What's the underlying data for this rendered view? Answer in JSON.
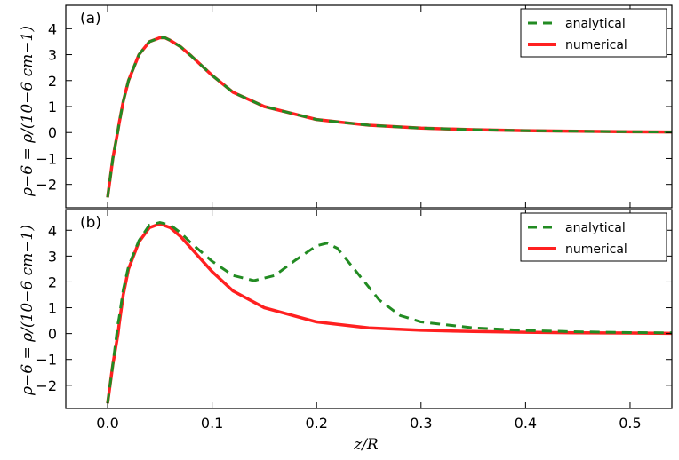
{
  "colors": {
    "analytical": "#228b22",
    "numerical": "#ff2020"
  },
  "xlabel": "z/R",
  "ylabel": "ρ−6 = ρ/(10−6 cm−1)",
  "chart_data": [
    {
      "type": "line",
      "panel_label": "(a)",
      "xlim": [
        -0.04,
        0.54
      ],
      "ylim": [
        -2.9,
        4.9
      ],
      "xticks": [
        0.0,
        0.1,
        0.2,
        0.3,
        0.4,
        0.5
      ],
      "xtick_labels": [
        "0.0",
        "0.1",
        "0.2",
        "0.3",
        "0.4",
        "0.5"
      ],
      "yticks": [
        -2,
        -1,
        0,
        1,
        2,
        3,
        4
      ],
      "ytick_labels": [
        "−2",
        "−1",
        "0",
        "1",
        "2",
        "3",
        "4"
      ],
      "show_xtick_labels": false,
      "legend_position": "top-right",
      "series": [
        {
          "name": "analytical",
          "style": "dashed",
          "x": [
            0.0,
            0.005,
            0.01,
            0.011,
            0.015,
            0.02,
            0.03,
            0.04,
            0.05,
            0.055,
            0.06,
            0.07,
            0.08,
            0.1,
            0.12,
            0.15,
            0.2,
            0.25,
            0.3,
            0.35,
            0.4,
            0.45,
            0.5,
            0.54
          ],
          "y": [
            -2.5,
            -1.0,
            0.1,
            0.35,
            1.2,
            2.0,
            3.0,
            3.5,
            3.65,
            3.65,
            3.55,
            3.3,
            2.95,
            2.2,
            1.55,
            1.0,
            0.5,
            0.28,
            0.17,
            0.11,
            0.07,
            0.05,
            0.03,
            0.02
          ]
        },
        {
          "name": "numerical",
          "style": "solid",
          "x": [
            0.0,
            0.005,
            0.01,
            0.011,
            0.015,
            0.02,
            0.03,
            0.04,
            0.05,
            0.055,
            0.06,
            0.07,
            0.08,
            0.1,
            0.12,
            0.15,
            0.2,
            0.25,
            0.3,
            0.35,
            0.4,
            0.45,
            0.5,
            0.54
          ],
          "y": [
            -2.5,
            -1.0,
            0.1,
            0.35,
            1.2,
            2.0,
            3.0,
            3.5,
            3.65,
            3.65,
            3.55,
            3.3,
            2.95,
            2.2,
            1.55,
            1.0,
            0.5,
            0.28,
            0.17,
            0.11,
            0.07,
            0.05,
            0.03,
            0.02
          ]
        }
      ]
    },
    {
      "type": "line",
      "panel_label": "(b)",
      "xlim": [
        -0.04,
        0.54
      ],
      "ylim": [
        -2.9,
        4.8
      ],
      "xticks": [
        0.0,
        0.1,
        0.2,
        0.3,
        0.4,
        0.5
      ],
      "xtick_labels": [
        "0.0",
        "0.1",
        "0.2",
        "0.3",
        "0.4",
        "0.5"
      ],
      "yticks": [
        -2,
        -1,
        0,
        1,
        2,
        3,
        4
      ],
      "ytick_labels": [
        "−2",
        "−1",
        "0",
        "1",
        "2",
        "3",
        "4"
      ],
      "show_xtick_labels": true,
      "legend_position": "top-right",
      "series": [
        {
          "name": "analytical",
          "style": "dashed",
          "x": [
            0.0,
            0.005,
            0.01,
            0.011,
            0.015,
            0.02,
            0.03,
            0.04,
            0.05,
            0.06,
            0.07,
            0.08,
            0.1,
            0.12,
            0.14,
            0.16,
            0.18,
            0.2,
            0.21,
            0.22,
            0.24,
            0.26,
            0.28,
            0.3,
            0.35,
            0.4,
            0.45,
            0.5,
            0.54
          ],
          "y": [
            -2.7,
            -1.2,
            0.4,
            0.6,
            1.7,
            2.6,
            3.6,
            4.2,
            4.3,
            4.2,
            3.9,
            3.5,
            2.8,
            2.25,
            2.05,
            2.25,
            2.85,
            3.4,
            3.5,
            3.3,
            2.3,
            1.3,
            0.7,
            0.45,
            0.22,
            0.12,
            0.07,
            0.04,
            0.03
          ]
        },
        {
          "name": "numerical",
          "style": "solid",
          "x": [
            0.0,
            0.005,
            0.01,
            0.011,
            0.015,
            0.02,
            0.03,
            0.04,
            0.05,
            0.06,
            0.07,
            0.08,
            0.1,
            0.12,
            0.15,
            0.2,
            0.25,
            0.3,
            0.35,
            0.4,
            0.45,
            0.5,
            0.54
          ],
          "y": [
            -2.7,
            -1.2,
            0.0,
            0.35,
            1.5,
            2.5,
            3.55,
            4.1,
            4.25,
            4.1,
            3.75,
            3.3,
            2.4,
            1.65,
            1.0,
            0.45,
            0.22,
            0.13,
            0.08,
            0.05,
            0.03,
            0.02,
            0.01
          ]
        }
      ]
    }
  ]
}
